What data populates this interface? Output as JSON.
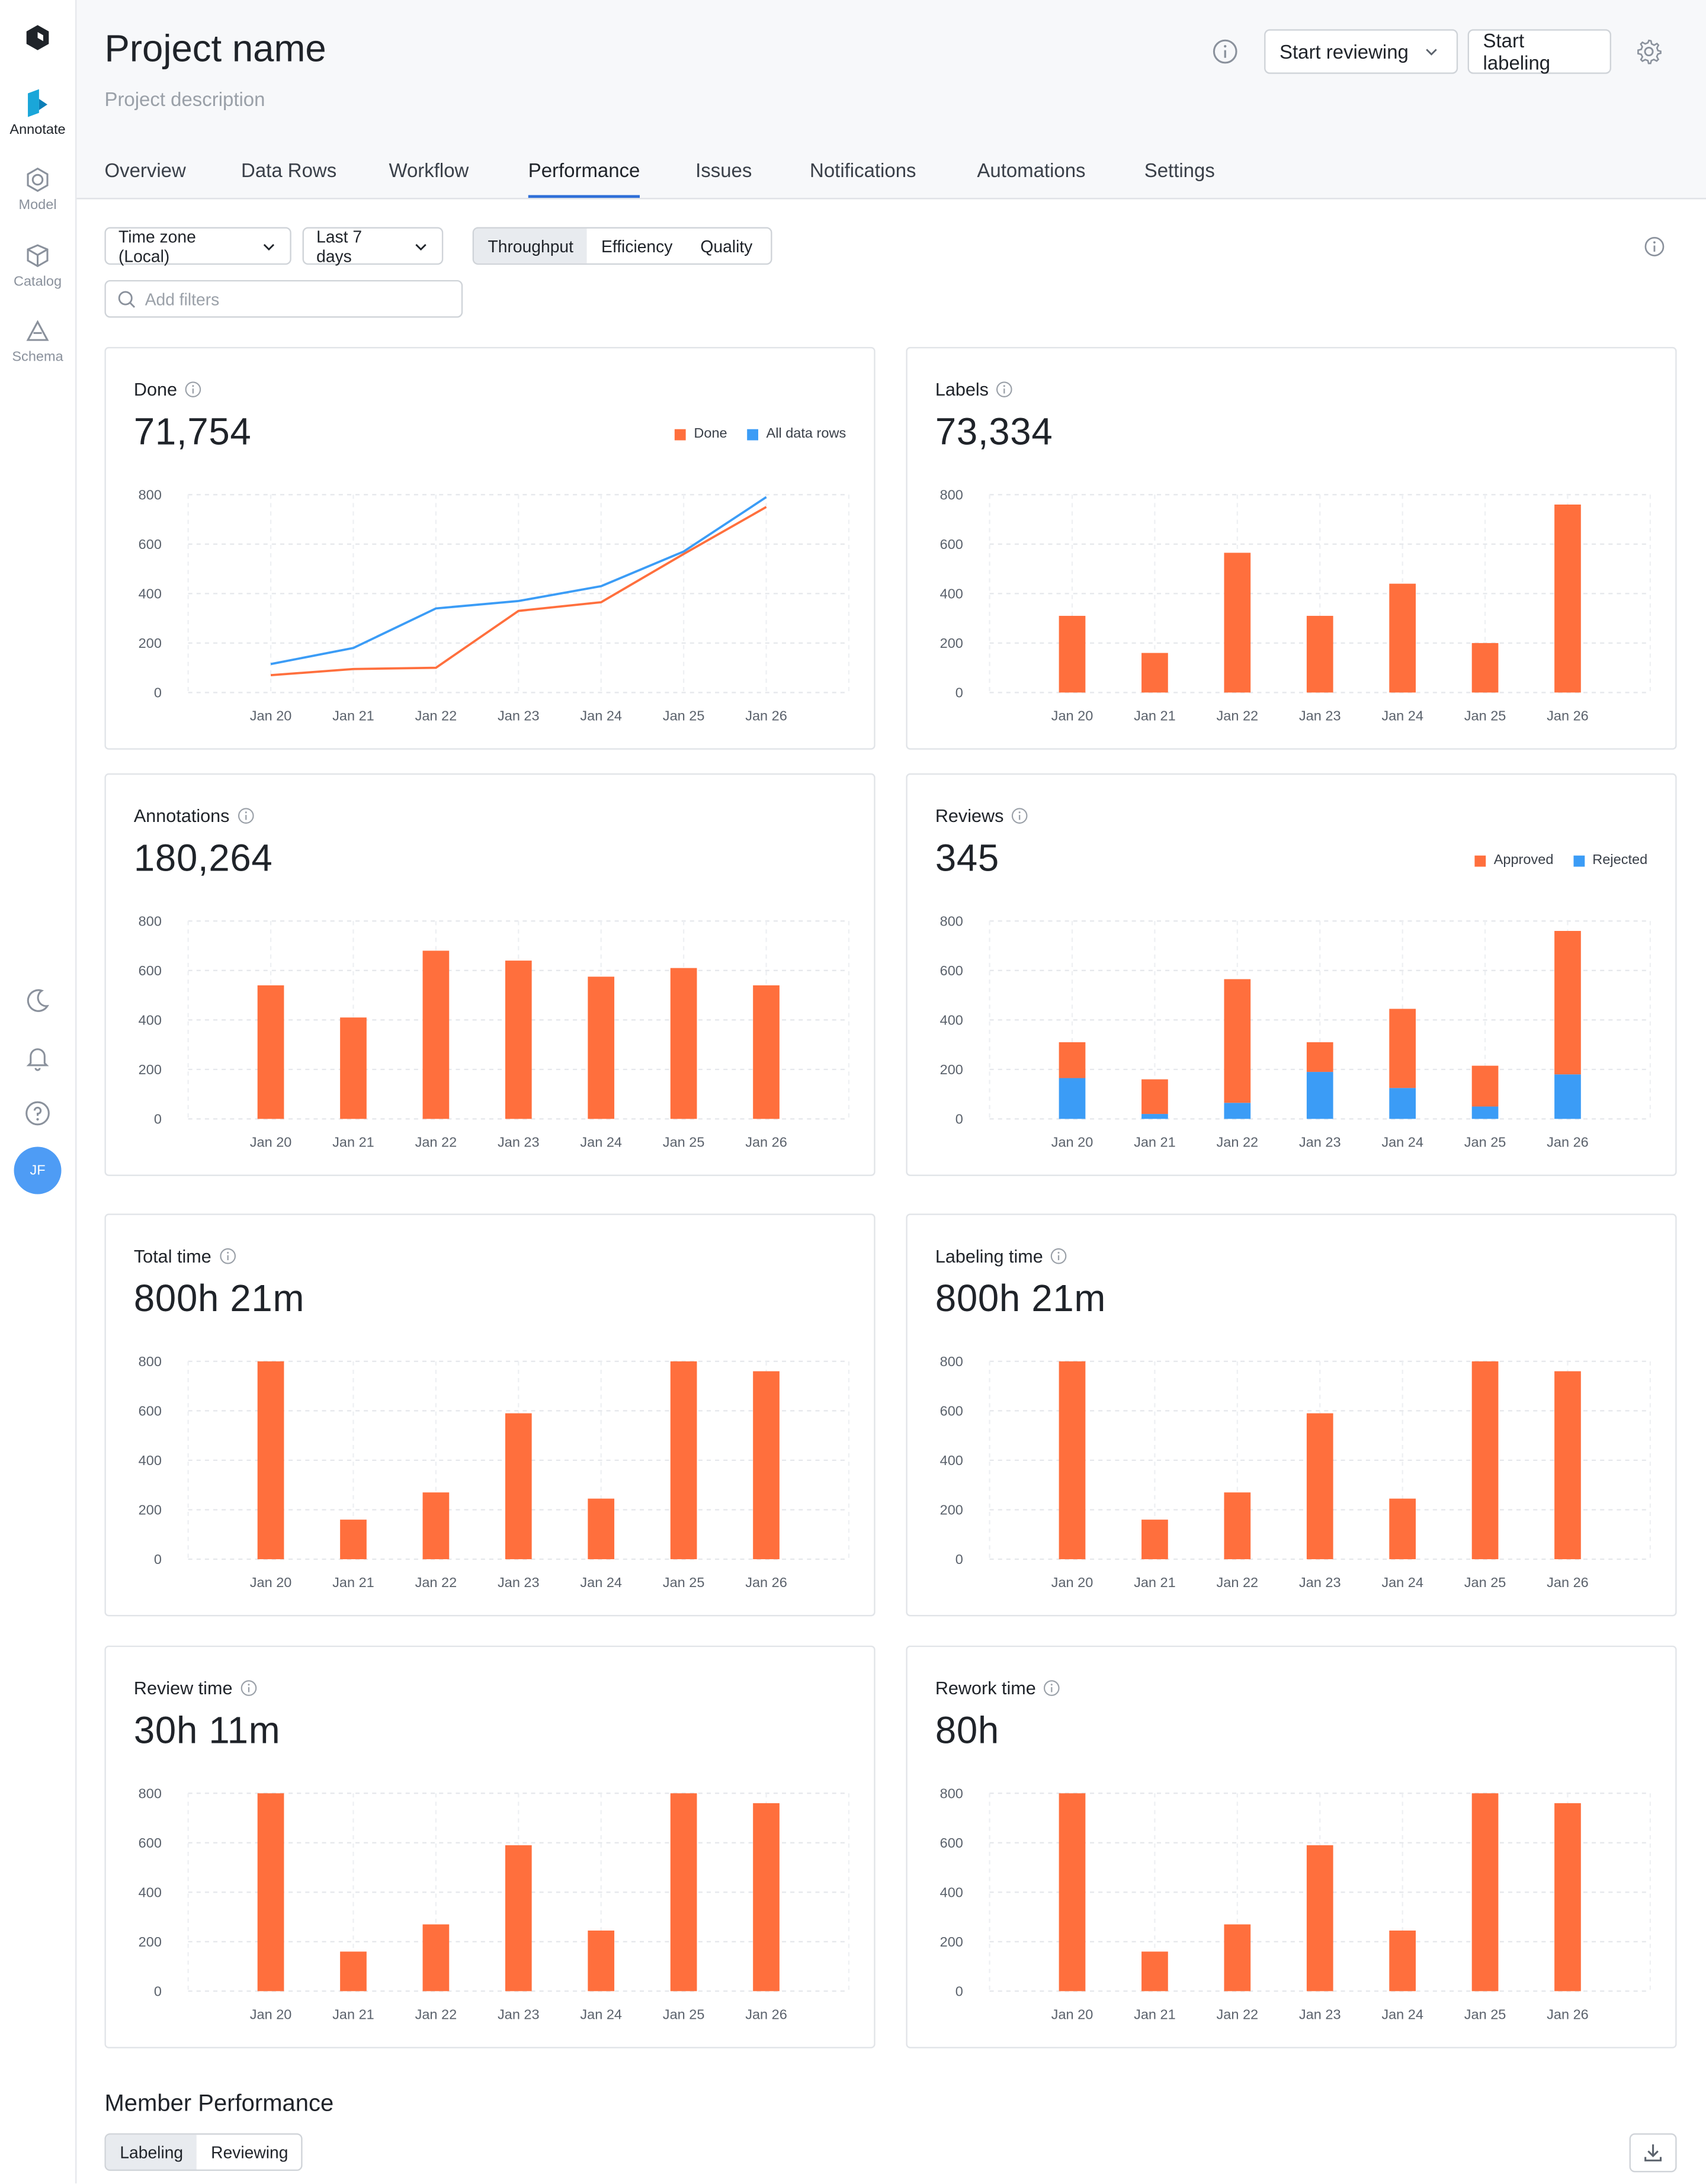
{
  "sidebar": {
    "items": [
      {
        "label": "Annotate",
        "icon": "annotate-icon"
      },
      {
        "label": "Model",
        "icon": "model-icon"
      },
      {
        "label": "Catalog",
        "icon": "catalog-icon"
      },
      {
        "label": "Schema",
        "icon": "schema-icon"
      }
    ],
    "bottom_icons": [
      "moon-icon",
      "bell-icon",
      "help-icon"
    ],
    "avatar_initials": "JF"
  },
  "header": {
    "title": "Project name",
    "description": "Project description",
    "start_reviewing": "Start reviewing",
    "start_labeling": "Start labeling",
    "tabs": [
      {
        "label": "Overview"
      },
      {
        "label": "Data Rows"
      },
      {
        "label": "Workflow"
      },
      {
        "label": "Performance",
        "active": true
      },
      {
        "label": "Issues"
      },
      {
        "label": "Notifications"
      },
      {
        "label": "Automations"
      },
      {
        "label": "Settings"
      }
    ]
  },
  "toolbar": {
    "timezone": "Time zone (Local)",
    "range": "Last 7 days",
    "views": [
      "Throughput",
      "Efficiency",
      "Quality"
    ],
    "active_view": "Throughput",
    "filter_placeholder": "Add filters"
  },
  "colors": {
    "orange": "#ff6f3d",
    "blue": "#3b9cf6"
  },
  "cards": [
    {
      "title": "Done",
      "value": "71,754",
      "legend": [
        "Done",
        "All data rows"
      ]
    },
    {
      "title": "Labels",
      "value": "73,334"
    },
    {
      "title": "Annotations",
      "value": "180,264"
    },
    {
      "title": "Reviews",
      "value": "345",
      "legend": [
        "Approved",
        "Rejected"
      ]
    },
    {
      "title": "Total time",
      "value": "800h 21m"
    },
    {
      "title": "Labeling time",
      "value": "800h 21m"
    },
    {
      "title": "Review time",
      "value": "30h 11m"
    },
    {
      "title": "Rework time",
      "value": "80h"
    }
  ],
  "chart_data": [
    {
      "type": "line",
      "categories": [
        "Jan 20",
        "Jan 21",
        "Jan 22",
        "Jan 23",
        "Jan 24",
        "Jan 25",
        "Jan 26"
      ],
      "ylim": [
        0,
        800
      ],
      "yticks": [
        "800",
        "600",
        "400",
        "200",
        "0"
      ],
      "series": [
        {
          "name": "Done",
          "color": "#ff6f3d",
          "values": [
            70,
            95,
            100,
            330,
            365,
            560,
            750
          ]
        },
        {
          "name": "All data rows",
          "color": "#3b9cf6",
          "values": [
            115,
            180,
            340,
            370,
            430,
            570,
            790
          ]
        }
      ]
    },
    {
      "type": "bar",
      "categories": [
        "Jan 20",
        "Jan 21",
        "Jan 22",
        "Jan 23",
        "Jan 24",
        "Jan 25",
        "Jan 26"
      ],
      "ylim": [
        0,
        800
      ],
      "yticks": [
        "800",
        "600",
        "400",
        "200",
        "0"
      ],
      "series": [
        {
          "color": "#ff6f3d",
          "values": [
            310,
            160,
            565,
            310,
            440,
            200,
            760
          ]
        }
      ]
    },
    {
      "type": "bar",
      "categories": [
        "Jan 20",
        "Jan 21",
        "Jan 22",
        "Jan 23",
        "Jan 24",
        "Jan 25",
        "Jan 26"
      ],
      "ylim": [
        0,
        800
      ],
      "yticks": [
        "800",
        "600",
        "400",
        "200",
        "0"
      ],
      "series": [
        {
          "color": "#ff6f3d",
          "values": [
            540,
            410,
            680,
            640,
            575,
            610,
            540
          ]
        }
      ]
    },
    {
      "type": "bar",
      "stacked": true,
      "categories": [
        "Jan 20",
        "Jan 21",
        "Jan 22",
        "Jan 23",
        "Jan 24",
        "Jan 25",
        "Jan 26"
      ],
      "ylim": [
        0,
        800
      ],
      "yticks": [
        "800",
        "600",
        "400",
        "200",
        "0"
      ],
      "series": [
        {
          "name": "Rejected",
          "color": "#3b9cf6",
          "values": [
            165,
            20,
            65,
            190,
            125,
            50,
            180
          ]
        },
        {
          "name": "Approved",
          "color": "#ff6f3d",
          "values": [
            145,
            140,
            500,
            120,
            320,
            165,
            580
          ]
        }
      ]
    },
    {
      "type": "bar",
      "categories": [
        "Jan 20",
        "Jan 21",
        "Jan 22",
        "Jan 23",
        "Jan 24",
        "Jan 25",
        "Jan 26"
      ],
      "ylim": [
        0,
        800
      ],
      "yticks": [
        "800",
        "600",
        "400",
        "200",
        "0"
      ],
      "series": [
        {
          "color": "#ff6f3d",
          "values": [
            800,
            160,
            270,
            590,
            245,
            800,
            760
          ]
        }
      ]
    },
    {
      "type": "bar",
      "categories": [
        "Jan 20",
        "Jan 21",
        "Jan 22",
        "Jan 23",
        "Jan 24",
        "Jan 25",
        "Jan 26"
      ],
      "ylim": [
        0,
        800
      ],
      "yticks": [
        "800",
        "600",
        "400",
        "200",
        "0"
      ],
      "series": [
        {
          "color": "#ff6f3d",
          "values": [
            800,
            160,
            270,
            590,
            245,
            800,
            760
          ]
        }
      ]
    },
    {
      "type": "bar",
      "categories": [
        "Jan 20",
        "Jan 21",
        "Jan 22",
        "Jan 23",
        "Jan 24",
        "Jan 25",
        "Jan 26"
      ],
      "ylim": [
        0,
        800
      ],
      "yticks": [
        "800",
        "600",
        "400",
        "200",
        "0"
      ],
      "series": [
        {
          "color": "#ff6f3d",
          "values": [
            800,
            160,
            270,
            590,
            245,
            800,
            760
          ]
        }
      ]
    },
    {
      "type": "bar",
      "categories": [
        "Jan 20",
        "Jan 21",
        "Jan 22",
        "Jan 23",
        "Jan 24",
        "Jan 25",
        "Jan 26"
      ],
      "ylim": [
        0,
        800
      ],
      "yticks": [
        "800",
        "600",
        "400",
        "200",
        "0"
      ],
      "series": [
        {
          "color": "#ff6f3d",
          "values": [
            800,
            160,
            270,
            590,
            245,
            800,
            760
          ]
        }
      ]
    }
  ],
  "member_performance": {
    "title": "Member Performance",
    "tabs": [
      "Labeling",
      "Reviewing"
    ],
    "active_tab": "Labeling"
  }
}
